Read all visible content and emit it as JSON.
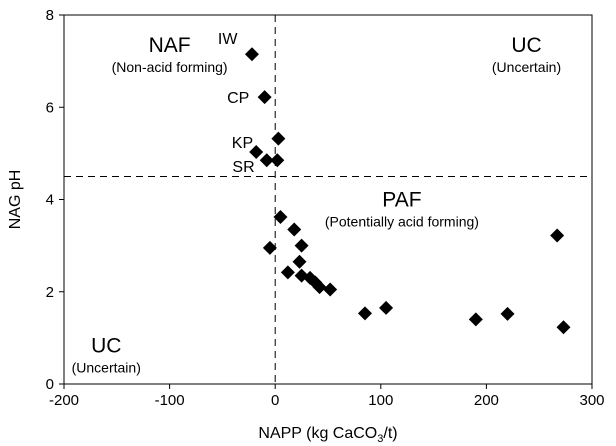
{
  "chart_data": {
    "type": "scatter",
    "xlabel": "NAPP (kg CaCO",
    "xlabel_sub": "3",
    "xlabel_end": "/t)",
    "ylabel": "NAG pH",
    "xlim": [
      -200,
      300
    ],
    "ylim": [
      0,
      8
    ],
    "xticks": [
      "-200",
      "-100",
      "0",
      "100",
      "200",
      "300"
    ],
    "xtick_values": [
      -200,
      -100,
      0,
      100,
      200,
      300
    ],
    "yticks": [
      "0",
      "2",
      "4",
      "6",
      "8"
    ],
    "ytick_values": [
      0,
      2,
      4,
      6,
      8
    ],
    "threshold_lines": {
      "x": 0,
      "y": 4.5
    },
    "grid": false,
    "marker": "diamond",
    "points": [
      {
        "x": -22,
        "y": 7.15
      },
      {
        "x": -10,
        "y": 6.22
      },
      {
        "x": 3,
        "y": 5.32
      },
      {
        "x": -18,
        "y": 5.03
      },
      {
        "x": -8,
        "y": 4.85
      },
      {
        "x": 2,
        "y": 4.85
      },
      {
        "x": 5,
        "y": 3.62
      },
      {
        "x": 18,
        "y": 3.35
      },
      {
        "x": -5,
        "y": 2.95
      },
      {
        "x": 25,
        "y": 3.0
      },
      {
        "x": 23,
        "y": 2.65
      },
      {
        "x": 12,
        "y": 2.42
      },
      {
        "x": 25,
        "y": 2.35
      },
      {
        "x": 33,
        "y": 2.3
      },
      {
        "x": 38,
        "y": 2.2
      },
      {
        "x": 42,
        "y": 2.1
      },
      {
        "x": 52,
        "y": 2.05
      },
      {
        "x": 85,
        "y": 1.53
      },
      {
        "x": 105,
        "y": 1.65
      },
      {
        "x": 190,
        "y": 1.4
      },
      {
        "x": 220,
        "y": 1.52
      },
      {
        "x": 267,
        "y": 3.22
      },
      {
        "x": 273,
        "y": 1.23
      }
    ],
    "point_labels": [
      {
        "text": "IW",
        "x": -45,
        "y": 7.5
      },
      {
        "text": "CP",
        "x": -35,
        "y": 6.22
      },
      {
        "text": "KP",
        "x": -31,
        "y": 5.25
      },
      {
        "text": "SR",
        "x": -30,
        "y": 4.73
      }
    ],
    "regions": [
      {
        "title": "NAF",
        "subtitle": "(Non-acid forming)",
        "x": -100,
        "y": 7.2,
        "anchor": "middle"
      },
      {
        "title": "UC",
        "subtitle": "(Uncertain)",
        "x": 238,
        "y": 7.2,
        "anchor": "middle"
      },
      {
        "title": "PAF",
        "subtitle": "(Potentially acid forming)",
        "x": 120,
        "y": 3.85,
        "anchor": "middle"
      },
      {
        "title": "UC",
        "subtitle": "(Uncertain)",
        "x": -160,
        "y": 0.68,
        "anchor": "middle"
      }
    ]
  }
}
